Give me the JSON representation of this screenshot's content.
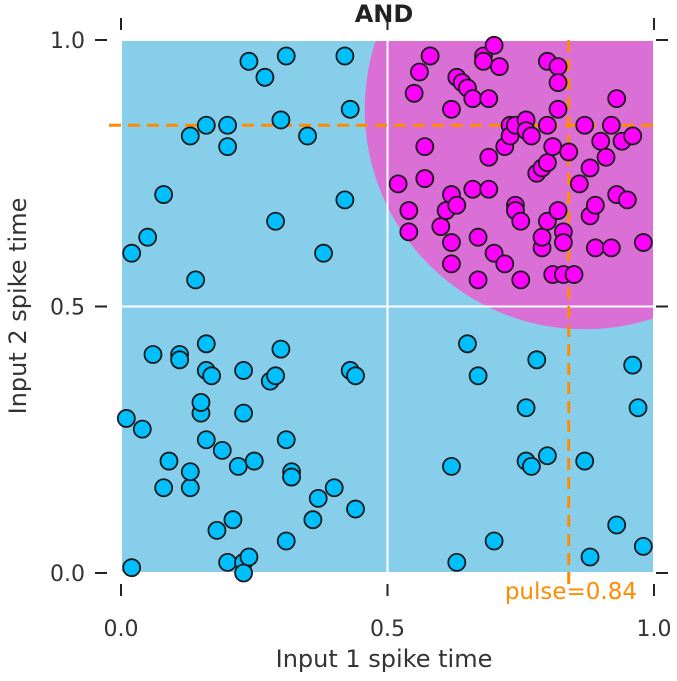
{
  "chart_data": {
    "type": "scatter",
    "title": "AND",
    "xlabel": "Input 1 spike time",
    "ylabel": "Input 2 spike time",
    "xlim": [
      0.0,
      1.0
    ],
    "ylim": [
      0.0,
      1.0
    ],
    "xticks": [
      "0.0",
      "0.5",
      "1.0"
    ],
    "yticks": [
      "0.0",
      "0.5",
      "1.0"
    ],
    "grid": true,
    "pulse": 0.84,
    "pulse_label": "pulse=0.84",
    "colors": {
      "background_region": "#87ceeb",
      "firing_region": "#da70d6",
      "class0_point": "#00bfff",
      "class1_point": "#ff00ff",
      "pulse_line": "#ff8c00",
      "grid": "#ffffff"
    },
    "series": [
      {
        "values": [
          [
            0.01,
            0.29
          ],
          [
            0.02,
            0.01
          ],
          [
            0.02,
            0.6
          ],
          [
            0.04,
            0.27
          ],
          [
            0.05,
            0.63
          ],
          [
            0.06,
            0.41
          ],
          [
            0.08,
            0.16
          ],
          [
            0.08,
            0.71
          ],
          [
            0.09,
            0.21
          ],
          [
            0.11,
            0.41
          ],
          [
            0.11,
            0.4
          ],
          [
            0.13,
            0.82
          ],
          [
            0.13,
            0.16
          ],
          [
            0.13,
            0.19
          ],
          [
            0.14,
            0.55
          ],
          [
            0.15,
            0.3
          ],
          [
            0.15,
            0.32
          ],
          [
            0.16,
            0.84
          ],
          [
            0.16,
            0.38
          ],
          [
            0.16,
            0.25
          ],
          [
            0.16,
            0.43
          ],
          [
            0.17,
            0.37
          ],
          [
            0.18,
            0.08
          ],
          [
            0.19,
            0.23
          ],
          [
            0.2,
            0.8
          ],
          [
            0.2,
            0.84
          ],
          [
            0.2,
            0.02
          ],
          [
            0.21,
            0.1
          ],
          [
            0.22,
            0.2
          ],
          [
            0.23,
            0.02
          ],
          [
            0.23,
            0.0
          ],
          [
            0.23,
            0.3
          ],
          [
            0.23,
            0.38
          ],
          [
            0.24,
            0.03
          ],
          [
            0.24,
            0.96
          ],
          [
            0.25,
            0.21
          ],
          [
            0.27,
            0.93
          ],
          [
            0.28,
            0.36
          ],
          [
            0.29,
            0.66
          ],
          [
            0.29,
            0.37
          ],
          [
            0.3,
            0.42
          ],
          [
            0.3,
            0.85
          ],
          [
            0.31,
            0.97
          ],
          [
            0.31,
            0.25
          ],
          [
            0.31,
            0.06
          ],
          [
            0.32,
            0.19
          ],
          [
            0.32,
            0.18
          ],
          [
            0.35,
            0.82
          ],
          [
            0.36,
            0.1
          ],
          [
            0.37,
            0.14
          ],
          [
            0.38,
            0.6
          ],
          [
            0.4,
            0.16
          ],
          [
            0.42,
            0.97
          ],
          [
            0.42,
            0.7
          ],
          [
            0.43,
            0.38
          ],
          [
            0.43,
            0.87
          ],
          [
            0.44,
            0.37
          ],
          [
            0.44,
            0.12
          ],
          [
            0.62,
            0.2
          ],
          [
            0.63,
            0.02
          ],
          [
            0.65,
            0.43
          ],
          [
            0.67,
            0.37
          ],
          [
            0.7,
            0.06
          ],
          [
            0.76,
            0.31
          ],
          [
            0.76,
            0.21
          ],
          [
            0.77,
            0.2
          ],
          [
            0.78,
            0.4
          ],
          [
            0.8,
            0.22
          ],
          [
            0.87,
            0.21
          ],
          [
            0.88,
            0.03
          ],
          [
            0.93,
            0.09
          ],
          [
            0.96,
            0.39
          ],
          [
            0.97,
            0.31
          ],
          [
            0.98,
            0.05
          ]
        ]
      },
      {
        "values": [
          [
            0.52,
            0.73
          ],
          [
            0.54,
            0.68
          ],
          [
            0.54,
            0.64
          ],
          [
            0.55,
            0.9
          ],
          [
            0.56,
            0.94
          ],
          [
            0.57,
            0.8
          ],
          [
            0.57,
            0.74
          ],
          [
            0.58,
            0.97
          ],
          [
            0.58,
            0.97
          ],
          [
            0.6,
            0.65
          ],
          [
            0.61,
            0.68
          ],
          [
            0.62,
            0.62
          ],
          [
            0.62,
            0.71
          ],
          [
            0.62,
            0.58
          ],
          [
            0.62,
            0.87
          ],
          [
            0.63,
            0.93
          ],
          [
            0.63,
            0.69
          ],
          [
            0.64,
            0.92
          ],
          [
            0.65,
            0.91
          ],
          [
            0.66,
            0.89
          ],
          [
            0.66,
            0.72
          ],
          [
            0.67,
            0.63
          ],
          [
            0.67,
            0.55
          ],
          [
            0.68,
            0.97
          ],
          [
            0.68,
            0.96
          ],
          [
            0.69,
            0.89
          ],
          [
            0.69,
            0.78
          ],
          [
            0.69,
            0.72
          ],
          [
            0.7,
            0.99
          ],
          [
            0.7,
            0.6
          ],
          [
            0.71,
            0.95
          ],
          [
            0.72,
            0.8
          ],
          [
            0.72,
            0.58
          ],
          [
            0.73,
            0.84
          ],
          [
            0.73,
            0.82
          ],
          [
            0.74,
            0.84
          ],
          [
            0.74,
            0.69
          ],
          [
            0.74,
            0.68
          ],
          [
            0.75,
            0.66
          ],
          [
            0.75,
            0.55
          ],
          [
            0.76,
            0.85
          ],
          [
            0.76,
            0.83
          ],
          [
            0.77,
            0.82
          ],
          [
            0.78,
            0.75
          ],
          [
            0.79,
            0.76
          ],
          [
            0.79,
            0.61
          ],
          [
            0.79,
            0.63
          ],
          [
            0.8,
            0.77
          ],
          [
            0.8,
            0.84
          ],
          [
            0.8,
            0.66
          ],
          [
            0.8,
            0.96
          ],
          [
            0.81,
            0.8
          ],
          [
            0.81,
            0.56
          ],
          [
            0.82,
            0.95
          ],
          [
            0.82,
            0.92
          ],
          [
            0.82,
            0.87
          ],
          [
            0.82,
            0.68
          ],
          [
            0.83,
            0.64
          ],
          [
            0.83,
            0.56
          ],
          [
            0.83,
            0.62
          ],
          [
            0.84,
            0.79
          ],
          [
            0.85,
            0.56
          ],
          [
            0.86,
            0.73
          ],
          [
            0.87,
            0.84
          ],
          [
            0.88,
            0.76
          ],
          [
            0.88,
            0.67
          ],
          [
            0.89,
            0.69
          ],
          [
            0.89,
            0.61
          ],
          [
            0.9,
            0.81
          ],
          [
            0.91,
            0.78
          ],
          [
            0.92,
            0.84
          ],
          [
            0.92,
            0.61
          ],
          [
            0.93,
            0.71
          ],
          [
            0.93,
            0.89
          ],
          [
            0.94,
            0.81
          ],
          [
            0.95,
            0.7
          ],
          [
            0.96,
            0.82
          ],
          [
            0.98,
            0.62
          ]
        ]
      }
    ]
  }
}
